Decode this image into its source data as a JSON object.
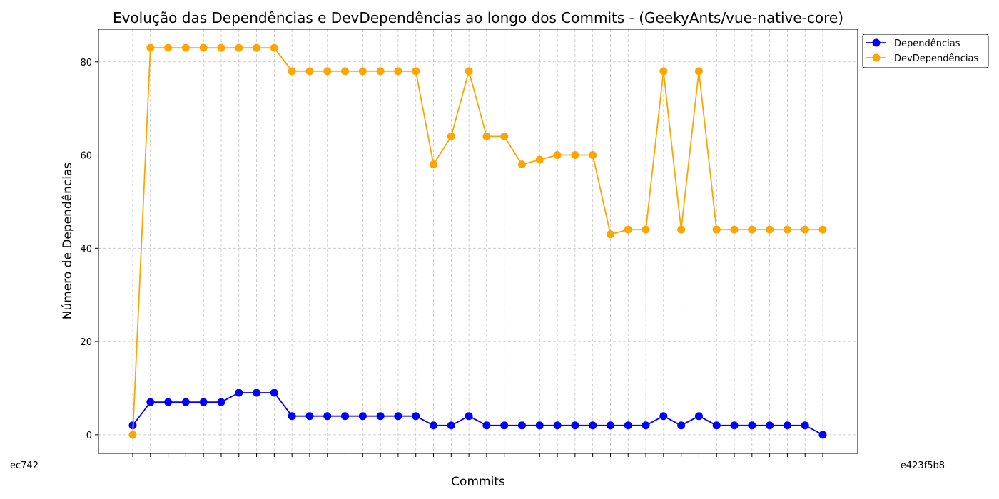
{
  "chart_data": {
    "type": "line",
    "title": "Evolução das Dependências e DevDependências ao longo dos Commits - (GeekyAnts/vue-native-core)",
    "xlabel": "Commits",
    "ylabel": "Número de Dependências",
    "ylim": [
      -4,
      87
    ],
    "yticks": [
      0,
      20,
      40,
      60,
      80
    ],
    "grid": true,
    "legend_position": "outside-top-right",
    "x_tick_labels_overlapping": true,
    "first_x_label": "ec742",
    "last_x_label": "e423f5b8",
    "series": [
      {
        "name": "Dependências",
        "color": "#0000ff",
        "values": [
          2,
          7,
          7,
          7,
          7,
          7,
          9,
          9,
          9,
          4,
          4,
          4,
          4,
          4,
          4,
          4,
          4,
          2,
          2,
          4,
          2,
          2,
          2,
          2,
          2,
          2,
          2,
          2,
          2,
          2,
          4,
          2,
          4,
          2,
          2,
          2,
          2,
          2,
          2,
          0
        ]
      },
      {
        "name": "DevDependências",
        "color": "#ffa500",
        "values": [
          0,
          83,
          83,
          83,
          83,
          83,
          83,
          83,
          83,
          78,
          78,
          78,
          78,
          78,
          78,
          78,
          78,
          58,
          64,
          78,
          64,
          64,
          58,
          59,
          60,
          60,
          60,
          43,
          44,
          44,
          78,
          44,
          78,
          44,
          44,
          44,
          44,
          44,
          44,
          44
        ]
      }
    ]
  }
}
